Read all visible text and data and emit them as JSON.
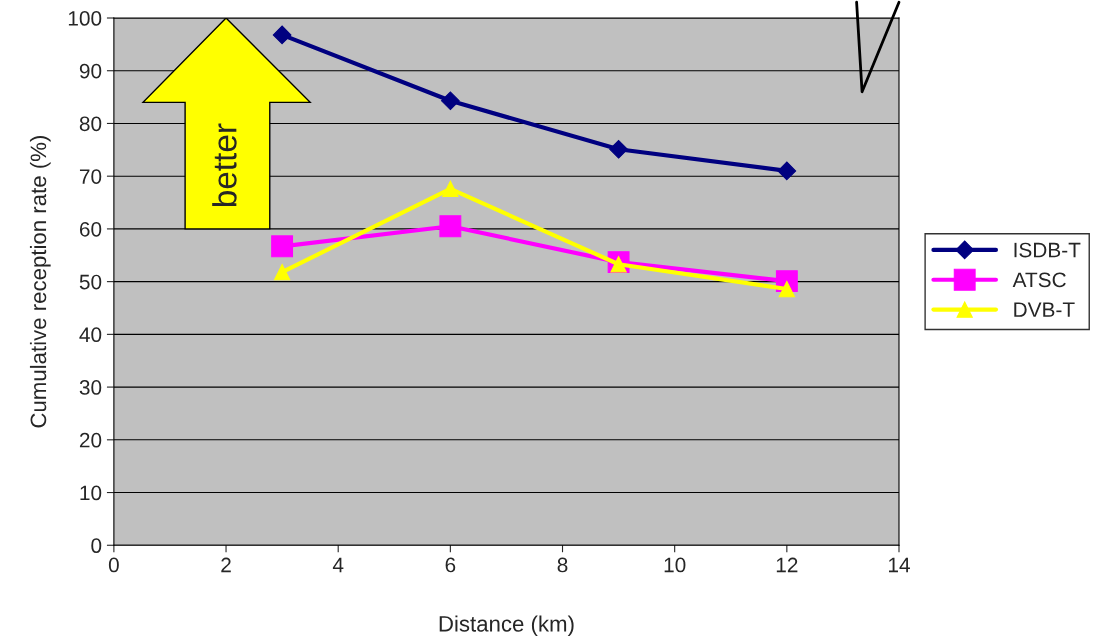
{
  "chart_data": {
    "type": "line",
    "xlabel": "Distance (km)",
    "ylabel": "Cumulative reception rate (%)",
    "x": [
      3,
      6,
      9,
      12
    ],
    "series": [
      {
        "name": "ISDB-T",
        "color": "#000080",
        "marker": "diamond",
        "values": [
          96.8,
          84.3,
          75.1,
          71.0
        ]
      },
      {
        "name": "ATSC",
        "color": "#ff00ff",
        "marker": "square",
        "values": [
          56.7,
          60.5,
          53.7,
          50.1
        ]
      },
      {
        "name": "DVB-T",
        "color": "#ffff00",
        "marker": "triangle",
        "values": [
          51.8,
          67.6,
          53.3,
          48.6
        ]
      }
    ],
    "xlim": [
      0,
      14
    ],
    "xticks": [
      0,
      2,
      4,
      6,
      8,
      10,
      12,
      14
    ],
    "ylim": [
      0,
      100
    ],
    "yticks": [
      0,
      10,
      20,
      30,
      40,
      50,
      60,
      70,
      80,
      90,
      100
    ],
    "grid": "y",
    "legend": "right",
    "annotations": [
      "better"
    ]
  }
}
